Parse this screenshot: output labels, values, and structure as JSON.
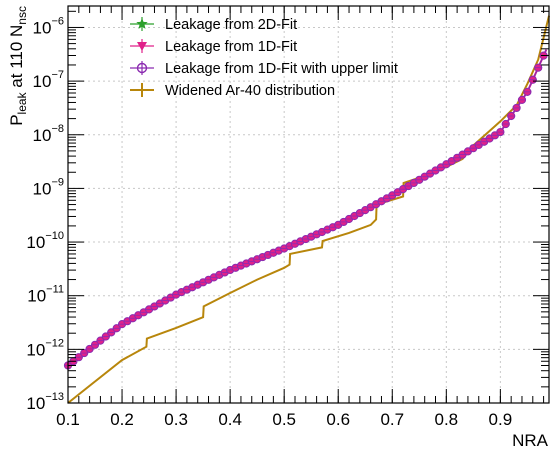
{
  "chart_data": {
    "type": "line",
    "xlabel": "NRA",
    "ylabel": {
      "main": "P",
      "sub1": "leak",
      "mid": " at 110 N",
      "sub2": "nsc"
    },
    "xlim": [
      0.1,
      0.99
    ],
    "ylim_exponents": [
      -13,
      -5.6
    ],
    "y_scale": "log",
    "grid": true,
    "x_ticks": [
      "0.1",
      "0.2",
      "0.3",
      "0.4",
      "0.5",
      "0.6",
      "0.7",
      "0.8",
      "0.9"
    ],
    "x_tick_values": [
      0.1,
      0.2,
      0.3,
      0.4,
      0.5,
      0.6,
      0.7,
      0.8,
      0.9
    ],
    "y_ticks": [
      {
        "base": "10",
        "exp": "−13",
        "value": -13
      },
      {
        "base": "10",
        "exp": "−12",
        "value": -12
      },
      {
        "base": "10",
        "exp": "−11",
        "value": -11
      },
      {
        "base": "10",
        "exp": "−10",
        "value": -10
      },
      {
        "base": "10",
        "exp": "−9",
        "value": -9
      },
      {
        "base": "10",
        "exp": "−8",
        "value": -8
      },
      {
        "base": "10",
        "exp": "−7",
        "value": -7
      },
      {
        "base": "10",
        "exp": "−6",
        "value": -6
      }
    ],
    "legend_position": "top-left",
    "legend": [
      {
        "name": "Leakage from 2D-Fit",
        "color": "#2ca02c",
        "marker": "star"
      },
      {
        "name": "Leakage from 1D-Fit",
        "color": "#e0218a",
        "marker": "triangle-down"
      },
      {
        "name": "Leakage from 1D-Fit with upper limit",
        "color": "#8b2bb0",
        "marker": "open-circle"
      },
      {
        "name": "Widened Ar-40 distribution",
        "color": "#b8860b",
        "marker": "line"
      }
    ],
    "series": [
      {
        "name": "Leakage from 1D-Fit with upper limit",
        "x": [
          0.1,
          0.2,
          0.3,
          0.4,
          0.5,
          0.6,
          0.7,
          0.8,
          0.9,
          0.95,
          0.99
        ],
        "log10_y": [
          -12.3,
          -11.53,
          -10.98,
          -10.52,
          -10.12,
          -9.68,
          -9.13,
          -8.55,
          -7.95,
          -7.2,
          -6.3
        ]
      },
      {
        "name": "Widened Ar-40 distribution",
        "x": [
          0.1,
          0.15,
          0.2,
          0.245,
          0.246,
          0.3,
          0.35,
          0.351,
          0.4,
          0.45,
          0.5,
          0.51,
          0.511,
          0.57,
          0.571,
          0.62,
          0.66,
          0.67,
          0.671,
          0.72,
          0.721,
          0.75,
          0.8,
          0.83,
          0.85,
          0.9,
          0.93,
          0.95,
          0.97,
          0.99
        ],
        "log10_y": [
          -13.0,
          -12.6,
          -12.2,
          -11.95,
          -11.8,
          -11.6,
          -11.4,
          -11.2,
          -10.95,
          -10.7,
          -10.48,
          -10.42,
          -10.22,
          -10.1,
          -9.98,
          -9.83,
          -9.68,
          -9.58,
          -9.3,
          -9.15,
          -8.9,
          -8.8,
          -8.6,
          -8.45,
          -8.2,
          -7.75,
          -7.45,
          -7.05,
          -6.6,
          -5.78
        ]
      }
    ]
  }
}
